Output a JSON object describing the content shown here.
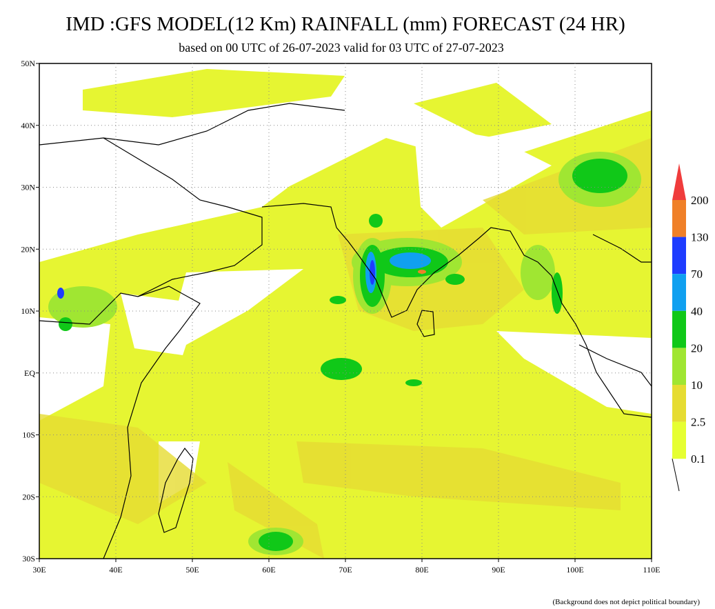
{
  "header": {
    "title": "IMD :GFS MODEL(12 Km) RAINFALL (mm) FORECAST (24 HR)",
    "subtitle": "based on 00 UTC of 26-07-2023 valid for 03 UTC of 27-07-2023"
  },
  "map": {
    "lon_labels": [
      "30E",
      "40E",
      "50E",
      "60E",
      "70E",
      "80E",
      "90E",
      "100E",
      "110E"
    ],
    "lat_labels": [
      "50N",
      "40N",
      "30N",
      "20N",
      "10N",
      "EQ",
      "10S",
      "20S",
      "30S"
    ]
  },
  "legend": {
    "items": [
      {
        "label": "200",
        "color": "#f08028"
      },
      {
        "label": "130",
        "color": "#1e3cff"
      },
      {
        "label": "70",
        "color": "#10a0f0"
      },
      {
        "label": "40",
        "color": "#10c818"
      },
      {
        "label": "20",
        "color": "#a0e632"
      },
      {
        "label": "10",
        "color": "#e6dc32"
      },
      {
        "label": "2.5",
        "color": "#e6ff32"
      },
      {
        "label": "0.1",
        "color": "#ffffff"
      }
    ],
    "top_color": "#f03c3c"
  },
  "footnote": "(Background does not depict political boundary)"
}
